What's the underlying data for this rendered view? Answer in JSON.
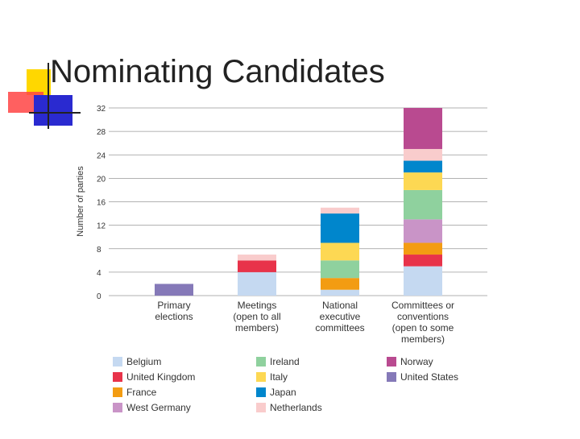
{
  "title": "Nominating Candidates",
  "chart_data": {
    "type": "stacked-bar",
    "y_label": "Number of parties",
    "categories": [
      "Primary\nelections",
      "Meetings\n(open to all\nmembers)",
      "National\nexecutive\ncommittees",
      "Committees or\nconventions\n(open to some\nmembers)"
    ],
    "series": [
      {
        "name": "Belgium",
        "color": "#c5d9f1",
        "values": [
          0,
          4,
          1,
          5
        ]
      },
      {
        "name": "United Kingdom",
        "color": "#e8334a",
        "values": [
          0,
          2,
          0,
          2
        ]
      },
      {
        "name": "France",
        "color": "#f39c12",
        "values": [
          0,
          0,
          2,
          2
        ]
      },
      {
        "name": "West Germany",
        "color": "#c994c7",
        "values": [
          0,
          0,
          0,
          4
        ]
      },
      {
        "name": "Ireland",
        "color": "#8fd19e",
        "values": [
          0,
          0,
          3,
          5
        ]
      },
      {
        "name": "Italy",
        "color": "#fdd853",
        "values": [
          0,
          0,
          3,
          3
        ]
      },
      {
        "name": "Japan",
        "color": "#0086cc",
        "values": [
          0,
          0,
          5,
          2
        ]
      },
      {
        "name": "Netherlands",
        "color": "#f9cccc",
        "values": [
          0,
          1,
          1,
          2
        ]
      },
      {
        "name": "Norway",
        "color": "#b94a90",
        "values": [
          0,
          0,
          0,
          7
        ]
      },
      {
        "name": "United States",
        "color": "#8579b8",
        "values": [
          2,
          0,
          0,
          0
        ]
      }
    ],
    "ylim": [
      0,
      32
    ],
    "yticks": [
      0,
      4,
      8,
      12,
      16,
      20,
      24,
      28,
      32
    ],
    "grid": true
  }
}
